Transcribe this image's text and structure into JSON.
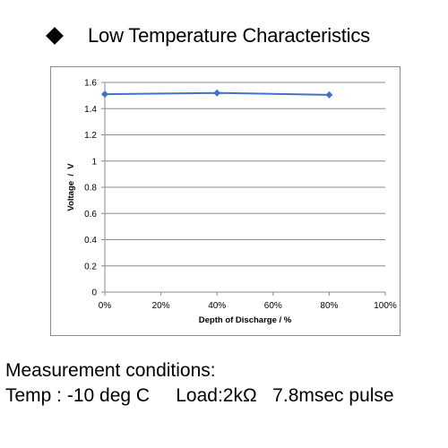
{
  "heading": {
    "text": "Low Temperature Characteristics",
    "bullet_icon": "diamond-bullet-icon"
  },
  "chart_data": {
    "type": "line",
    "title": "",
    "xlabel": "Depth of Discharge / %",
    "ylabel": "Voltage  /  V",
    "x_ticks": [
      "0%",
      "20%",
      "40%",
      "60%",
      "80%",
      "100%"
    ],
    "y_ticks": [
      "0",
      "0.2",
      "0.4",
      "0.6",
      "0.8",
      "1",
      "1.2",
      "1.4",
      "1.6"
    ],
    "xlim": [
      0,
      100
    ],
    "ylim": [
      0,
      1.6
    ],
    "grid": "horizontal",
    "legend": "none",
    "series": [
      {
        "color": "#4472c4",
        "marker": "diamond",
        "x": [
          0,
          40,
          80
        ],
        "y": [
          1.51,
          1.52,
          1.505
        ]
      }
    ]
  },
  "footer": {
    "line1": "Measurement conditions:",
    "line2": "Temp : -10 deg C     Load:2kΩ   7.8msec pulse"
  }
}
